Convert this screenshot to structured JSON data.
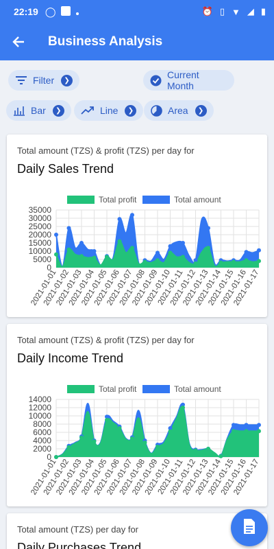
{
  "status": {
    "time": "22:19"
  },
  "header": {
    "title": "Business Analysis"
  },
  "filters": {
    "filter": "Filter",
    "period": "Current Month",
    "bar": "Bar",
    "line": "Line",
    "area": "Area"
  },
  "colors": {
    "accent": "#3a7bf0",
    "profit": "#22c27a",
    "amount": "#3377f2"
  },
  "charts": [
    {
      "subtitle": "Total amount (TZS) & profit (TZS) per day for",
      "title": "Daily Sales Trend"
    },
    {
      "subtitle": "Total amount (TZS) & profit (TZS) per day for",
      "title": "Daily Income Trend"
    },
    {
      "subtitle": "Total amount (TZS) per day for",
      "title": "Daily Purchases Trend"
    }
  ],
  "chart_data": [
    {
      "type": "area",
      "categories": [
        "2021-01-01",
        "2021-01-02",
        "2021-01-03",
        "2021-01-04",
        "2021-01-05",
        "2021-01-06",
        "2021-01-07",
        "2021-01-08",
        "2021-01-09",
        "2021-01-10",
        "2021-01-11",
        "2021-01-12",
        "2021-01-13",
        "2021-01-14",
        "2021-01-15",
        "2021-01-16",
        "2021-01-17"
      ],
      "x": [
        0,
        0.5,
        1,
        1.5,
        2,
        2.5,
        3,
        3.5,
        4,
        4.5,
        5,
        5.5,
        6,
        6.5,
        7,
        7.5,
        8,
        8.5,
        9,
        9.5,
        10,
        10.5,
        11,
        11.5,
        12,
        12.5,
        13,
        13.5,
        14,
        14.5,
        15,
        15.5,
        16
      ],
      "series": [
        {
          "name": "Total profit",
          "values": [
            8000,
            500,
            11000,
            8000,
            7000,
            6000,
            6000,
            1500,
            6500,
            5000,
            16000,
            9000,
            12000,
            2500,
            3500,
            3000,
            4500,
            3000,
            9000,
            6500,
            6500,
            3000,
            2500,
            9500,
            12000,
            1000,
            3000,
            3500,
            3500,
            3500,
            4500,
            3500,
            4000
          ]
        },
        {
          "name": "Total amount",
          "values": [
            20000,
            500,
            24000,
            12000,
            15000,
            11000,
            10000,
            1500,
            7000,
            6000,
            29500,
            21000,
            32000,
            3000,
            4500,
            4000,
            9000,
            5000,
            13000,
            15500,
            15000,
            7000,
            4500,
            29500,
            24000,
            2500,
            4500,
            4000,
            4500,
            4500,
            9500,
            9000,
            10500
          ]
        }
      ],
      "ylim": [
        0,
        35000
      ],
      "yticks": [
        0,
        5000,
        10000,
        15000,
        20000,
        25000,
        30000,
        35000
      ],
      "legend": "top",
      "grid": true
    },
    {
      "type": "area",
      "categories": [
        "2021-01-01",
        "2021-01-02",
        "2021-01-03",
        "2021-01-04",
        "2021-01-05",
        "2021-01-06",
        "2021-01-07",
        "2021-01-08",
        "2021-01-09",
        "2021-01-10",
        "2021-01-11",
        "2021-01-12",
        "2021-01-13",
        "2021-01-14",
        "2021-01-15",
        "2021-01-16",
        "2021-01-17"
      ],
      "x": [
        0,
        0.5,
        1,
        1.5,
        2,
        2.5,
        3,
        3.5,
        4,
        4.5,
        5,
        5.5,
        6,
        6.5,
        7,
        7.5,
        8,
        8.5,
        9,
        9.5,
        10,
        10.5,
        11,
        11.5,
        12,
        12.5,
        13,
        13.5,
        14,
        14.5,
        15,
        15.5,
        16
      ],
      "series": [
        {
          "name": "Total profit",
          "values": [
            0,
            600,
            2400,
            3300,
            4700,
            11000,
            3800,
            3300,
            9000,
            8300,
            7000,
            4300,
            4500,
            9500,
            3500,
            800,
            2500,
            3300,
            6200,
            9300,
            12000,
            3000,
            1600,
            1600,
            2000,
            1000,
            200,
            4200,
            6300,
            6300,
            6300,
            6300,
            6300
          ]
        },
        {
          "name": "Total amount",
          "values": [
            0,
            700,
            2700,
            3500,
            5000,
            13000,
            4000,
            3500,
            9800,
            8700,
            7400,
            4500,
            4800,
            11300,
            4000,
            900,
            3000,
            3700,
            7000,
            9800,
            12700,
            3300,
            1800,
            1800,
            2000,
            1000,
            300,
            4500,
            7800,
            7800,
            7800,
            7800,
            7800
          ]
        }
      ],
      "ylim": [
        0,
        14000
      ],
      "yticks": [
        0,
        2000,
        4000,
        6000,
        8000,
        10000,
        12000,
        14000
      ],
      "legend": "top",
      "grid": true
    }
  ]
}
